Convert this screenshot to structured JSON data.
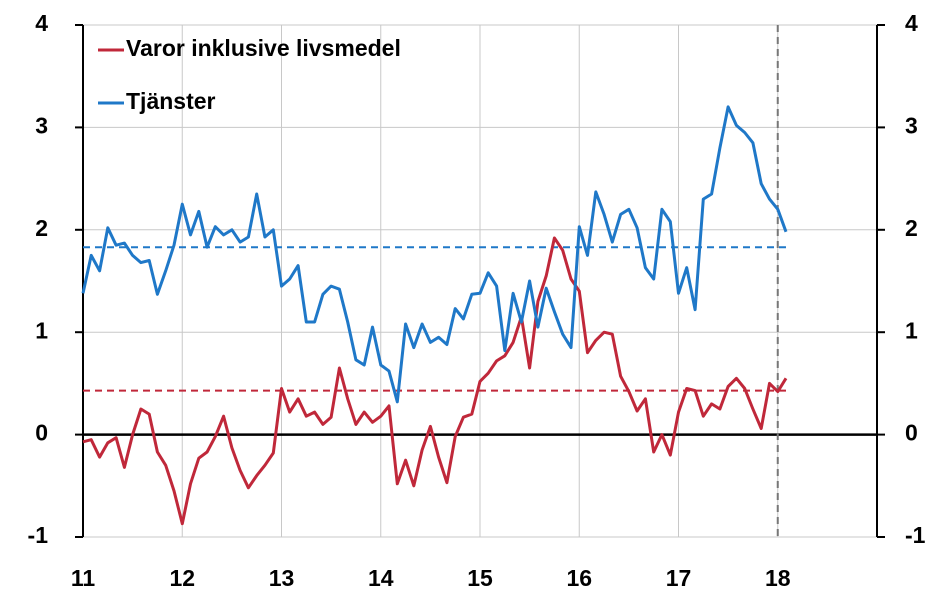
{
  "chart_data": {
    "type": "line",
    "x": [
      2011,
      2011.083,
      2011.167,
      2011.25,
      2011.333,
      2011.417,
      2011.5,
      2011.583,
      2011.667,
      2011.75,
      2011.833,
      2011.917,
      2012,
      2012.083,
      2012.167,
      2012.25,
      2012.333,
      2012.417,
      2012.5,
      2012.583,
      2012.667,
      2012.75,
      2012.833,
      2012.917,
      2013,
      2013.083,
      2013.167,
      2013.25,
      2013.333,
      2013.417,
      2013.5,
      2013.583,
      2013.667,
      2013.75,
      2013.833,
      2013.917,
      2014,
      2014.083,
      2014.167,
      2014.25,
      2014.333,
      2014.417,
      2014.5,
      2014.583,
      2014.667,
      2014.75,
      2014.833,
      2014.917,
      2015,
      2015.083,
      2015.167,
      2015.25,
      2015.333,
      2015.417,
      2015.5,
      2015.583,
      2015.667,
      2015.75,
      2015.833,
      2015.917,
      2016,
      2016.083,
      2016.167,
      2016.25,
      2016.333,
      2016.417,
      2016.5,
      2016.583,
      2016.667,
      2016.75,
      2016.833,
      2016.917,
      2017,
      2017.083,
      2017.167,
      2017.25,
      2017.333,
      2017.417,
      2017.5,
      2017.583,
      2017.667,
      2017.75,
      2017.833,
      2017.917,
      2018,
      2018.083
    ],
    "series": [
      {
        "name": "Varor inklusive livsmedel",
        "color": "#c0283a",
        "values": [
          -0.07,
          -0.05,
          -0.22,
          -0.08,
          -0.03,
          -0.32,
          0.0,
          0.25,
          0.2,
          -0.17,
          -0.3,
          -0.55,
          -0.87,
          -0.48,
          -0.23,
          -0.17,
          -0.02,
          0.18,
          -0.13,
          -0.35,
          -0.52,
          -0.4,
          -0.3,
          -0.18,
          0.45,
          0.22,
          0.35,
          0.18,
          0.22,
          0.1,
          0.17,
          0.65,
          0.35,
          0.1,
          0.22,
          0.12,
          0.18,
          0.28,
          -0.48,
          -0.25,
          -0.5,
          -0.15,
          0.08,
          -0.22,
          -0.47,
          -0.02,
          0.17,
          0.2,
          0.52,
          0.6,
          0.72,
          0.77,
          0.9,
          1.15,
          0.65,
          1.3,
          1.55,
          1.92,
          1.8,
          1.52,
          1.4,
          0.8,
          0.92,
          1.0,
          0.98,
          0.57,
          0.42,
          0.23,
          0.35,
          -0.17,
          0.0,
          -0.2,
          0.22,
          0.45,
          0.43,
          0.18,
          0.3,
          0.25,
          0.47,
          0.55,
          0.45,
          0.25,
          0.06,
          0.5,
          0.42,
          0.55
        ]
      },
      {
        "name": "Tjänster",
        "color": "#1f78c8",
        "values": [
          1.38,
          1.75,
          1.6,
          2.02,
          1.85,
          1.87,
          1.75,
          1.68,
          1.7,
          1.37,
          1.6,
          1.85,
          2.25,
          1.95,
          2.18,
          1.83,
          2.03,
          1.95,
          2.0,
          1.88,
          1.93,
          2.35,
          1.93,
          2.0,
          1.45,
          1.52,
          1.65,
          1.1,
          1.1,
          1.37,
          1.45,
          1.42,
          1.1,
          0.73,
          0.68,
          1.05,
          0.68,
          0.62,
          0.32,
          1.08,
          0.85,
          1.08,
          0.9,
          0.95,
          0.88,
          1.23,
          1.13,
          1.37,
          1.38,
          1.58,
          1.45,
          0.82,
          1.38,
          1.1,
          1.5,
          1.05,
          1.43,
          1.2,
          0.98,
          0.85,
          2.03,
          1.75,
          2.37,
          2.15,
          1.88,
          2.15,
          2.2,
          2.02,
          1.63,
          1.52,
          2.2,
          2.08,
          1.38,
          1.63,
          1.22,
          2.3,
          2.35,
          2.8,
          3.2,
          3.02,
          2.95,
          2.85,
          2.45,
          2.3,
          2.2,
          1.98
        ]
      }
    ],
    "hlines": [
      {
        "value": 1.83,
        "color": "#1f78c8"
      },
      {
        "value": 0.43,
        "color": "#c0283a"
      }
    ],
    "vlines": [
      2018
    ],
    "xlim": [
      2011,
      2019
    ],
    "xticks": [
      {
        "value": 2011,
        "label": "11"
      },
      {
        "value": 2012,
        "label": "12"
      },
      {
        "value": 2013,
        "label": "13"
      },
      {
        "value": 2014,
        "label": "14"
      },
      {
        "value": 2015,
        "label": "15"
      },
      {
        "value": 2016,
        "label": "16"
      },
      {
        "value": 2017,
        "label": "17"
      },
      {
        "value": 2018,
        "label": "18"
      }
    ],
    "ylim": [
      -1,
      4
    ],
    "yticks": [
      -1,
      0,
      1,
      2,
      3,
      4
    ],
    "y2lim": [
      -1,
      4
    ],
    "y2ticks": [
      -1,
      0,
      1,
      2,
      3,
      4
    ],
    "grid": true,
    "legend": "upper left"
  }
}
